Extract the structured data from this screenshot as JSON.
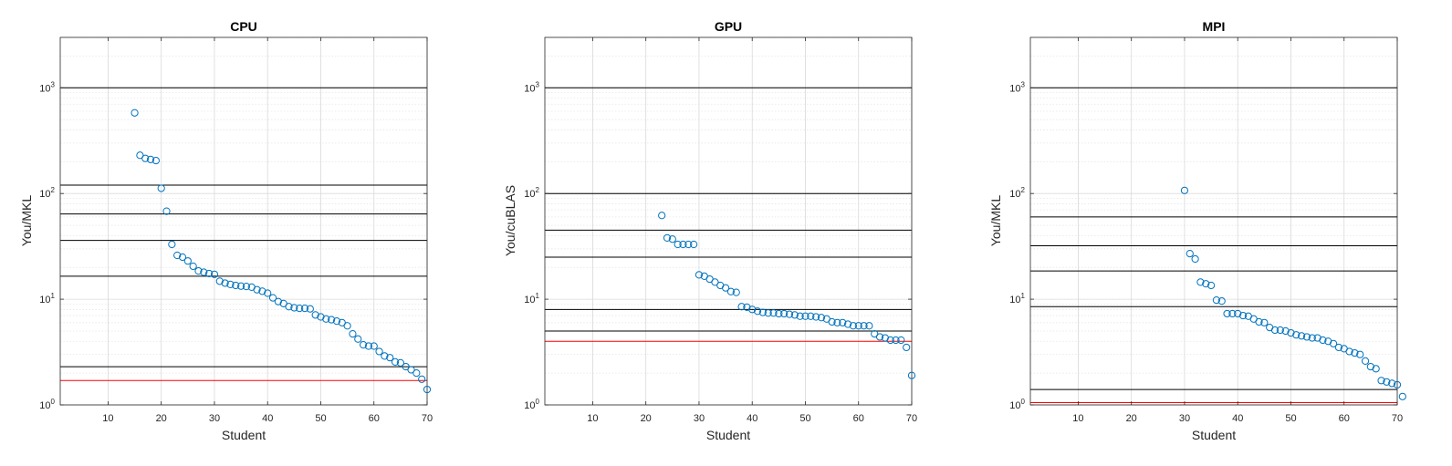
{
  "colors": {
    "marker": "#0072BD",
    "reference_line": "#000000",
    "baseline_line": "#FF0000",
    "grid": "#d9d9d9",
    "axis": "#262626"
  },
  "chart_data": [
    {
      "type": "scatter",
      "title": "CPU",
      "xlabel": "Student",
      "ylabel": "You/MKL",
      "xlim": [
        1,
        70
      ],
      "ylim": [
        1,
        3000
      ],
      "yscale": "log",
      "grid": true,
      "x_ticks": [
        10,
        20,
        30,
        40,
        50,
        60,
        70
      ],
      "y_ticks": [
        {
          "base": "10",
          "exp": "0",
          "value": 1
        },
        {
          "base": "10",
          "exp": "1",
          "value": 10
        },
        {
          "base": "10",
          "exp": "2",
          "value": 100
        },
        {
          "base": "10",
          "exp": "3",
          "value": 1000
        }
      ],
      "reference_lines": [
        1000,
        120,
        64,
        36,
        16.5,
        2.3
      ],
      "baseline_line": 1.7,
      "points": [
        [
          15,
          580
        ],
        [
          16,
          230
        ],
        [
          17,
          215
        ],
        [
          18,
          210
        ],
        [
          19,
          205
        ],
        [
          20,
          112
        ],
        [
          21,
          68
        ],
        [
          22,
          33
        ],
        [
          23,
          26
        ],
        [
          24,
          25
        ],
        [
          25,
          23
        ],
        [
          26,
          20.5
        ],
        [
          27,
          18.5
        ],
        [
          28,
          18
        ],
        [
          29,
          17.5
        ],
        [
          30,
          17.2
        ],
        [
          31,
          14.8
        ],
        [
          32,
          14.2
        ],
        [
          33,
          13.8
        ],
        [
          34,
          13.5
        ],
        [
          35,
          13.3
        ],
        [
          36,
          13.2
        ],
        [
          37,
          13.0
        ],
        [
          38,
          12.3
        ],
        [
          39,
          11.9
        ],
        [
          40,
          11.4
        ],
        [
          41,
          10.3
        ],
        [
          42,
          9.5
        ],
        [
          43,
          9.1
        ],
        [
          44,
          8.5
        ],
        [
          45,
          8.3
        ],
        [
          46,
          8.2
        ],
        [
          47,
          8.2
        ],
        [
          48,
          8.1
        ],
        [
          49,
          7.1
        ],
        [
          50,
          6.8
        ],
        [
          51,
          6.5
        ],
        [
          52,
          6.4
        ],
        [
          53,
          6.2
        ],
        [
          54,
          6.0
        ],
        [
          55,
          5.6
        ],
        [
          56,
          4.7
        ],
        [
          57,
          4.2
        ],
        [
          58,
          3.7
        ],
        [
          59,
          3.6
        ],
        [
          60,
          3.6
        ],
        [
          61,
          3.2
        ],
        [
          62,
          2.9
        ],
        [
          63,
          2.8
        ],
        [
          64,
          2.55
        ],
        [
          65,
          2.5
        ],
        [
          66,
          2.3
        ],
        [
          67,
          2.15
        ],
        [
          68,
          2.0
        ],
        [
          69,
          1.75
        ],
        [
          70,
          1.4
        ]
      ]
    },
    {
      "type": "scatter",
      "title": "GPU",
      "xlabel": "Student",
      "ylabel": "You/cuBLAS",
      "xlim": [
        1,
        70
      ],
      "ylim": [
        1,
        3000
      ],
      "yscale": "log",
      "grid": true,
      "x_ticks": [
        10,
        20,
        30,
        40,
        50,
        60,
        70
      ],
      "y_ticks": [
        {
          "base": "10",
          "exp": "0",
          "value": 1
        },
        {
          "base": "10",
          "exp": "1",
          "value": 10
        },
        {
          "base": "10",
          "exp": "2",
          "value": 100
        },
        {
          "base": "10",
          "exp": "3",
          "value": 1000
        }
      ],
      "reference_lines": [
        1000,
        100,
        45,
        25,
        8,
        5
      ],
      "baseline_line": 4.0,
      "points": [
        [
          23,
          62
        ],
        [
          24,
          38
        ],
        [
          25,
          37
        ],
        [
          26,
          33
        ],
        [
          27,
          33
        ],
        [
          28,
          33
        ],
        [
          29,
          33
        ],
        [
          30,
          17
        ],
        [
          31,
          16.5
        ],
        [
          32,
          15.5
        ],
        [
          33,
          14.5
        ],
        [
          34,
          13.5
        ],
        [
          35,
          12.8
        ],
        [
          36,
          11.8
        ],
        [
          37,
          11.6
        ],
        [
          38,
          8.5
        ],
        [
          39,
          8.4
        ],
        [
          40,
          8.0
        ],
        [
          41,
          7.7
        ],
        [
          42,
          7.5
        ],
        [
          43,
          7.4
        ],
        [
          44,
          7.4
        ],
        [
          45,
          7.3
        ],
        [
          46,
          7.3
        ],
        [
          47,
          7.2
        ],
        [
          48,
          7.1
        ],
        [
          49,
          6.9
        ],
        [
          50,
          6.9
        ],
        [
          51,
          6.9
        ],
        [
          52,
          6.8
        ],
        [
          53,
          6.7
        ],
        [
          54,
          6.5
        ],
        [
          55,
          6.1
        ],
        [
          56,
          6.0
        ],
        [
          57,
          6.0
        ],
        [
          58,
          5.8
        ],
        [
          59,
          5.6
        ],
        [
          60,
          5.6
        ],
        [
          61,
          5.6
        ],
        [
          62,
          5.6
        ],
        [
          63,
          4.7
        ],
        [
          64,
          4.4
        ],
        [
          65,
          4.3
        ],
        [
          66,
          4.1
        ],
        [
          67,
          4.1
        ],
        [
          68,
          4.1
        ],
        [
          69,
          3.5
        ],
        [
          70,
          1.9
        ]
      ]
    },
    {
      "type": "scatter",
      "title": "MPI",
      "xlabel": "Student",
      "ylabel": "You/MKL",
      "xlim": [
        1,
        70
      ],
      "ylim": [
        1,
        3000
      ],
      "yscale": "log",
      "grid": true,
      "x_ticks": [
        10,
        20,
        30,
        40,
        50,
        60,
        70
      ],
      "y_ticks": [
        {
          "base": "10",
          "exp": "0",
          "value": 1
        },
        {
          "base": "10",
          "exp": "1",
          "value": 10
        },
        {
          "base": "10",
          "exp": "2",
          "value": 100
        },
        {
          "base": "10",
          "exp": "3",
          "value": 1000
        }
      ],
      "reference_lines": [
        1000,
        60,
        32,
        18.5,
        8.5,
        1.4
      ],
      "baseline_line": 1.05,
      "points": [
        [
          30,
          107
        ],
        [
          31,
          27
        ],
        [
          32,
          24
        ],
        [
          33,
          14.5
        ],
        [
          34,
          14.0
        ],
        [
          35,
          13.5
        ],
        [
          36,
          9.8
        ],
        [
          37,
          9.6
        ],
        [
          38,
          7.3
        ],
        [
          39,
          7.3
        ],
        [
          40,
          7.3
        ],
        [
          41,
          7.0
        ],
        [
          42,
          6.9
        ],
        [
          43,
          6.5
        ],
        [
          44,
          6.1
        ],
        [
          45,
          6.0
        ],
        [
          46,
          5.4
        ],
        [
          47,
          5.1
        ],
        [
          48,
          5.1
        ],
        [
          49,
          5.0
        ],
        [
          50,
          4.8
        ],
        [
          51,
          4.6
        ],
        [
          52,
          4.5
        ],
        [
          53,
          4.4
        ],
        [
          54,
          4.3
        ],
        [
          55,
          4.3
        ],
        [
          56,
          4.1
        ],
        [
          57,
          4.0
        ],
        [
          58,
          3.8
        ],
        [
          59,
          3.5
        ],
        [
          60,
          3.4
        ],
        [
          61,
          3.2
        ],
        [
          62,
          3.1
        ],
        [
          63,
          3.0
        ],
        [
          64,
          2.6
        ],
        [
          65,
          2.3
        ],
        [
          66,
          2.2
        ],
        [
          67,
          1.7
        ],
        [
          68,
          1.65
        ],
        [
          69,
          1.6
        ],
        [
          70,
          1.55
        ],
        [
          71,
          1.2
        ]
      ]
    }
  ]
}
